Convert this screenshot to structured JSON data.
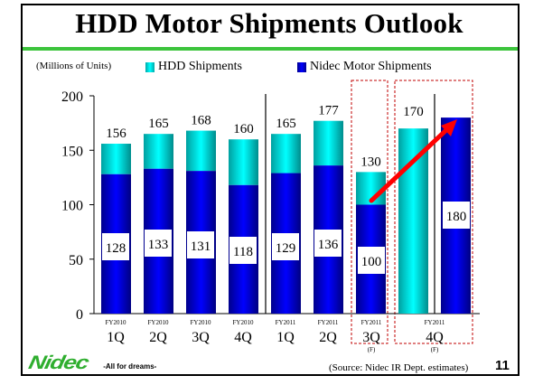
{
  "header": {
    "title": "HDD Motor Shipments Outlook"
  },
  "footer": {
    "source": "(Source: Nidec IR Dept. estimates)",
    "page_number": "11",
    "logo_text": "Nidec",
    "logo_tagline": "-All for dreams-"
  },
  "colors": {
    "hdd": "#00e5e5",
    "nidec": "#0000ee",
    "accent_line": "#3cc43c",
    "highlight_box": "#c00000",
    "arrow": "#ff0000"
  },
  "chart_data": {
    "type": "bar",
    "title": "HDD Motor Shipments Outlook",
    "ylabel": "(Millions of Units)",
    "xlabel": "",
    "ylim": [
      0,
      200
    ],
    "yticks": [
      0,
      50,
      100,
      150,
      200
    ],
    "grid": false,
    "legend": {
      "placement": "top",
      "entries": [
        "HDD Shipments",
        "Nidec Motor Shipments"
      ]
    },
    "categories": [
      {
        "fy": "FY2010",
        "q": "1Q",
        "forecast": ""
      },
      {
        "fy": "FY2010",
        "q": "2Q",
        "forecast": ""
      },
      {
        "fy": "FY2010",
        "q": "3Q",
        "forecast": ""
      },
      {
        "fy": "FY2010",
        "q": "4Q",
        "forecast": ""
      },
      {
        "fy": "FY2011",
        "q": "1Q",
        "forecast": ""
      },
      {
        "fy": "FY2011",
        "q": "2Q",
        "forecast": ""
      },
      {
        "fy": "FY2011",
        "q": "3Q",
        "forecast": "(F)"
      },
      {
        "fy": "FY2011",
        "q": "4Q",
        "forecast": "(F)"
      }
    ],
    "series": [
      {
        "name": "HDD Shipments",
        "values": [
          156,
          165,
          168,
          160,
          165,
          177,
          130,
          170
        ]
      },
      {
        "name": "Nidec Motor Shipments",
        "values": [
          128,
          133,
          131,
          118,
          129,
          136,
          100,
          180
        ]
      }
    ],
    "notes": "FY2011 4Q shows HDD shipments and Nidec motor shipments as separate side-by-side bars; FY2011 3Q and 4Q (forecasts) enclosed in red dashed boxes; red arrow from 3Q Nidec (100) to 4Q Nidec (180)."
  }
}
